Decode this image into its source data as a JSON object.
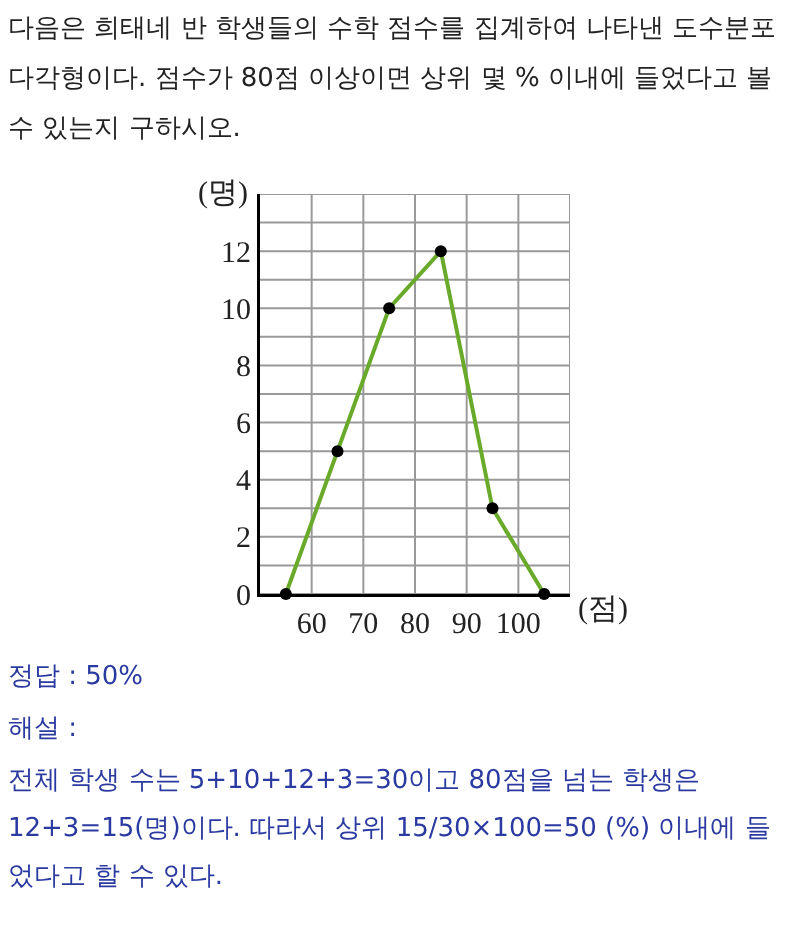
{
  "chart_data": {
    "type": "line",
    "title": "다음은 희태네 반 학생들의 수학 점수를 집계하여 나타낸 도수분포다각형이다. 점수가 80점 이상이면 상위 몇 % 이내에 들었다고 볼 수 있는지 구하시오.",
    "xlabel": "(점)",
    "ylabel": "(명)",
    "x": [
      55,
      65,
      75,
      85,
      95,
      105
    ],
    "series": [
      {
        "color": "#6aaa2a",
        "values": [
          0,
          5,
          10,
          12,
          3,
          0
        ]
      }
    ],
    "xlim": [
      50,
      110
    ],
    "xticks": [
      60,
      70,
      80,
      90,
      100,
      {
        "value": 110,
        "label": null
      }
    ],
    "ylim": [
      0,
      14
    ],
    "yticks": [
      0,
      {
        "value": 1,
        "label": null
      },
      2,
      {
        "value": 3,
        "label": null
      },
      4,
      {
        "value": 5,
        "label": null
      },
      6,
      {
        "value": 7,
        "label": null
      },
      8,
      {
        "value": 9,
        "label": null
      },
      10,
      {
        "value": 11,
        "label": null
      },
      12,
      {
        "value": 13,
        "label": null
      },
      {
        "value": 14,
        "label": null
      }
    ],
    "grid": true,
    "marker": "circle",
    "line_style": "solid",
    "annotations": [
      "정답 : 50%",
      "해설 :",
      "전체 학생 수는 5+10+12+3=30이고 80점을 넘는 학생은 12+3=15(명)이다. 따라서 상위 15/30×100=50 (%) 이내에 들었다고 할 수 있다."
    ]
  }
}
